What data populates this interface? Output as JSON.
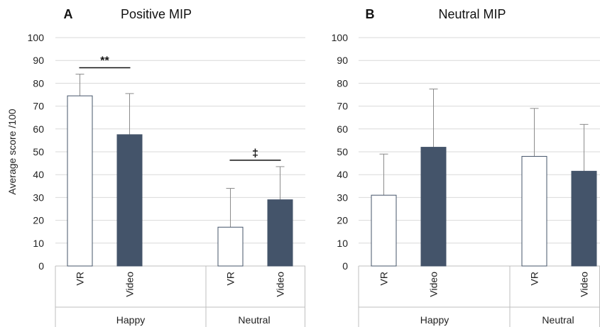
{
  "chart_data": [
    {
      "type": "bar",
      "panel_letter": "A",
      "title": "Positive MIP",
      "ylabel": "Average score /100",
      "ylim": [
        0,
        100
      ],
      "yticks": [
        0,
        10,
        20,
        30,
        40,
        50,
        60,
        70,
        80,
        90,
        100
      ],
      "grid": true,
      "groups": [
        "Happy",
        "Neutral"
      ],
      "categories": [
        "VR",
        "Video"
      ],
      "series": [
        {
          "group": "Happy",
          "bars": [
            {
              "label": "VR",
              "value": 74.5,
              "error": 9.5,
              "color": "#ffffff"
            },
            {
              "label": "Video",
              "value": 57.5,
              "error": 18,
              "color": "#44546a"
            }
          ]
        },
        {
          "group": "Neutral",
          "bars": [
            {
              "label": "VR",
              "value": 17,
              "error": 17,
              "color": "#ffffff"
            },
            {
              "label": "Video",
              "value": 29,
              "error": 14.5,
              "color": "#44546a"
            }
          ]
        }
      ],
      "annotations": [
        {
          "group": "Happy",
          "text": "**"
        },
        {
          "group": "Neutral",
          "text": "‡"
        }
      ]
    },
    {
      "type": "bar",
      "panel_letter": "B",
      "title": "Neutral MIP",
      "ylabel": "",
      "ylim": [
        0,
        100
      ],
      "yticks": [
        0,
        10,
        20,
        30,
        40,
        50,
        60,
        70,
        80,
        90,
        100
      ],
      "grid": true,
      "groups": [
        "Happy",
        "Neutral"
      ],
      "categories": [
        "VR",
        "Video"
      ],
      "series": [
        {
          "group": "Happy",
          "bars": [
            {
              "label": "VR",
              "value": 31,
              "error": 18,
              "color": "#ffffff"
            },
            {
              "label": "Video",
              "value": 52,
              "error": 25.5,
              "color": "#44546a"
            }
          ]
        },
        {
          "group": "Neutral",
          "bars": [
            {
              "label": "VR",
              "value": 48,
              "error": 21,
              "color": "#ffffff"
            },
            {
              "label": "Video",
              "value": 41.5,
              "error": 20.5,
              "color": "#44546a"
            }
          ]
        }
      ],
      "annotations": []
    }
  ]
}
